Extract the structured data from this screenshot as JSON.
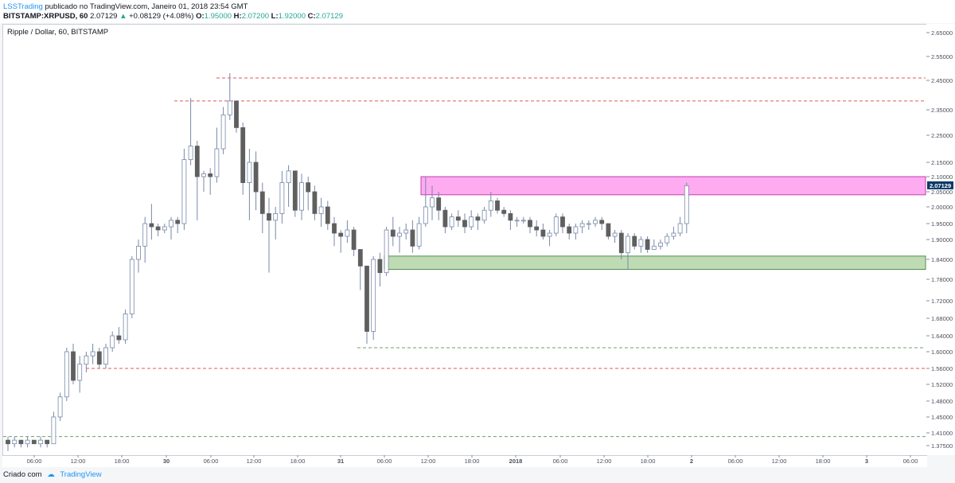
{
  "header": {
    "author": "LSSTrading",
    "published_text": "publicado no TradingView.com, Janeiro 01, 2018 23:54 GMT",
    "symbol": "BITSTAMP:XRPUSD, 60",
    "last": "2.07129",
    "change": "+0.08129 (+4.08%)",
    "o_label": "O:",
    "o": "1.95000",
    "h_label": "H:",
    "h": "2.07200",
    "l_label": "L:",
    "l": "1.92000",
    "c_label": "C:",
    "c": "2.07129"
  },
  "pane_title": "Ripple / Dollar, 60, BITSTAMP",
  "price_axis_labels": [
    "2.65000",
    "2.55000",
    "2.45000",
    "2.35000",
    "2.25000",
    "2.15000",
    "2.10000",
    "2.05000",
    "2.00000",
    "1.95000",
    "1.90000",
    "1.84000",
    "1.78000",
    "1.72000",
    "1.68000",
    "1.64000",
    "1.60000",
    "1.56000",
    "1.52000",
    "1.48000",
    "1.45000",
    "1.41000",
    "1.37500"
  ],
  "current_price_label": "2.07129",
  "time_axis_labels": [
    "06:00",
    "12:00",
    "18:00",
    "30",
    "06:00",
    "12:00",
    "18:00",
    "31",
    "06:00",
    "12:00",
    "18:00",
    "2018",
    "06:00",
    "12:00",
    "18:00",
    "2",
    "06:00",
    "12:00",
    "18:00",
    "3",
    "06:00"
  ],
  "footer": {
    "created": "Criado com",
    "logo_text": "TradingView"
  },
  "colors": {
    "up_candle": "#ffffff",
    "down_candle": "#5f5f5f",
    "wick": "#7788aa",
    "resistance_line": "#e05a5a",
    "support_line": "#6f9f6f",
    "resistance_zone": "#ff9cf0",
    "support_zone": "#a9cf9b",
    "price_tag": "#0c3a66"
  },
  "chart_data": {
    "type": "candlestick",
    "title": "Ripple / Dollar, 60, BITSTAMP",
    "xlabel": "",
    "ylabel": "",
    "interval": "60 min",
    "y_axis": "right",
    "ylim": [
      1.35,
      2.67
    ],
    "grid": false,
    "ohlc": [
      [
        1.39,
        1.4,
        1.36,
        1.38
      ],
      [
        1.38,
        1.4,
        1.37,
        1.39
      ],
      [
        1.39,
        1.39,
        1.37,
        1.38
      ],
      [
        1.38,
        1.4,
        1.37,
        1.39
      ],
      [
        1.39,
        1.39,
        1.38,
        1.38
      ],
      [
        1.38,
        1.4,
        1.37,
        1.39
      ],
      [
        1.39,
        1.39,
        1.37,
        1.38
      ],
      [
        1.38,
        1.46,
        1.38,
        1.45
      ],
      [
        1.45,
        1.5,
        1.44,
        1.49
      ],
      [
        1.49,
        1.61,
        1.48,
        1.6
      ],
      [
        1.6,
        1.62,
        1.52,
        1.53
      ],
      [
        1.53,
        1.59,
        1.5,
        1.57
      ],
      [
        1.57,
        1.6,
        1.55,
        1.59
      ],
      [
        1.59,
        1.62,
        1.57,
        1.6
      ],
      [
        1.6,
        1.61,
        1.56,
        1.57
      ],
      [
        1.57,
        1.62,
        1.56,
        1.61
      ],
      [
        1.61,
        1.65,
        1.6,
        1.64
      ],
      [
        1.64,
        1.66,
        1.62,
        1.63
      ],
      [
        1.63,
        1.7,
        1.62,
        1.69
      ],
      [
        1.69,
        1.85,
        1.68,
        1.84
      ],
      [
        1.84,
        1.9,
        1.8,
        1.88
      ],
      [
        1.88,
        1.97,
        1.83,
        1.95
      ],
      [
        1.95,
        2.01,
        1.9,
        1.94
      ],
      [
        1.94,
        1.95,
        1.91,
        1.93
      ],
      [
        1.93,
        1.95,
        1.92,
        1.94
      ],
      [
        1.94,
        1.97,
        1.9,
        1.96
      ],
      [
        1.96,
        1.97,
        1.92,
        1.95
      ],
      [
        1.95,
        2.2,
        1.93,
        2.16
      ],
      [
        2.16,
        2.39,
        2.14,
        2.21
      ],
      [
        2.21,
        2.23,
        1.96,
        2.1
      ],
      [
        2.1,
        2.12,
        2.05,
        2.11
      ],
      [
        2.11,
        2.13,
        2.04,
        2.1
      ],
      [
        2.1,
        2.28,
        2.08,
        2.2
      ],
      [
        2.2,
        2.36,
        2.18,
        2.33
      ],
      [
        2.33,
        2.48,
        2.31,
        2.38
      ],
      [
        2.38,
        2.38,
        2.26,
        2.28
      ],
      [
        2.28,
        2.3,
        2.04,
        2.08
      ],
      [
        2.08,
        2.2,
        1.96,
        2.15
      ],
      [
        2.15,
        2.19,
        1.99,
        2.05
      ],
      [
        2.05,
        2.08,
        1.92,
        1.98
      ],
      [
        1.98,
        2.03,
        1.8,
        1.96
      ],
      [
        1.96,
        2.0,
        1.9,
        1.98
      ],
      [
        1.98,
        2.12,
        1.95,
        2.08
      ],
      [
        2.08,
        2.14,
        2.0,
        2.12
      ],
      [
        2.12,
        2.12,
        1.97,
        1.99
      ],
      [
        1.99,
        2.11,
        1.96,
        2.08
      ],
      [
        2.08,
        2.1,
        1.99,
        2.05
      ],
      [
        2.05,
        2.07,
        1.96,
        1.98
      ],
      [
        1.98,
        2.03,
        1.94,
        2.0
      ],
      [
        2.0,
        2.02,
        1.93,
        1.95
      ],
      [
        1.95,
        1.97,
        1.88,
        1.92
      ],
      [
        1.92,
        1.93,
        1.86,
        1.91
      ],
      [
        1.91,
        1.96,
        1.89,
        1.93
      ],
      [
        1.93,
        1.94,
        1.85,
        1.87
      ],
      [
        1.87,
        1.87,
        1.75,
        1.82
      ],
      [
        1.82,
        1.82,
        1.62,
        1.65
      ],
      [
        1.65,
        1.85,
        1.63,
        1.84
      ],
      [
        1.84,
        1.86,
        1.76,
        1.8
      ],
      [
        1.8,
        1.94,
        1.79,
        1.93
      ],
      [
        1.93,
        1.97,
        1.88,
        1.91
      ],
      [
        1.91,
        1.94,
        1.86,
        1.92
      ],
      [
        1.92,
        1.95,
        1.9,
        1.93
      ],
      [
        1.93,
        1.96,
        1.86,
        1.88
      ],
      [
        1.88,
        1.97,
        1.87,
        1.95
      ],
      [
        1.95,
        2.1,
        1.94,
        2.0
      ],
      [
        2.0,
        2.07,
        1.96,
        2.03
      ],
      [
        2.03,
        2.05,
        1.96,
        1.99
      ],
      [
        1.99,
        2.0,
        1.92,
        1.94
      ],
      [
        1.94,
        1.98,
        1.93,
        1.97
      ],
      [
        1.97,
        1.99,
        1.94,
        1.96
      ],
      [
        1.96,
        1.98,
        1.92,
        1.94
      ],
      [
        1.94,
        1.99,
        1.93,
        1.97
      ],
      [
        1.97,
        1.98,
        1.93,
        1.96
      ],
      [
        1.96,
        2.0,
        1.95,
        1.99
      ],
      [
        1.99,
        2.05,
        1.97,
        2.02
      ],
      [
        2.02,
        2.03,
        1.98,
        1.99
      ],
      [
        1.99,
        2.0,
        1.97,
        1.98
      ],
      [
        1.98,
        1.99,
        1.93,
        1.96
      ],
      [
        1.96,
        1.97,
        1.94,
        1.96
      ],
      [
        1.96,
        1.97,
        1.95,
        1.96
      ],
      [
        1.96,
        1.97,
        1.92,
        1.94
      ],
      [
        1.94,
        1.96,
        1.91,
        1.93
      ],
      [
        1.93,
        1.95,
        1.9,
        1.91
      ],
      [
        1.91,
        1.93,
        1.88,
        1.92
      ],
      [
        1.92,
        1.98,
        1.91,
        1.97
      ],
      [
        1.97,
        1.98,
        1.92,
        1.94
      ],
      [
        1.94,
        1.95,
        1.9,
        1.92
      ],
      [
        1.92,
        1.95,
        1.9,
        1.94
      ],
      [
        1.94,
        1.96,
        1.92,
        1.95
      ],
      [
        1.95,
        1.96,
        1.93,
        1.95
      ],
      [
        1.95,
        1.97,
        1.94,
        1.96
      ],
      [
        1.96,
        1.97,
        1.93,
        1.95
      ],
      [
        1.95,
        1.95,
        1.9,
        1.91
      ],
      [
        1.91,
        1.93,
        1.89,
        1.92
      ],
      [
        1.92,
        1.93,
        1.84,
        1.86
      ],
      [
        1.86,
        1.92,
        1.81,
        1.91
      ],
      [
        1.91,
        1.92,
        1.87,
        1.88
      ],
      [
        1.88,
        1.91,
        1.86,
        1.9
      ],
      [
        1.9,
        1.91,
        1.86,
        1.87
      ],
      [
        1.87,
        1.9,
        1.87,
        1.88
      ],
      [
        1.88,
        1.9,
        1.87,
        1.89
      ],
      [
        1.89,
        1.92,
        1.88,
        1.91
      ],
      [
        1.91,
        1.94,
        1.9,
        1.92
      ],
      [
        1.92,
        1.97,
        1.91,
        1.95
      ],
      [
        1.95,
        2.08,
        1.92,
        2.07
      ]
    ],
    "horizontal_levels": [
      {
        "style": "dashed",
        "color": "red",
        "price": 2.46
      },
      {
        "style": "dashed",
        "color": "red",
        "price": 2.38
      },
      {
        "style": "dashed",
        "color": "red",
        "price": 1.56
      },
      {
        "style": "dashed",
        "color": "green",
        "price": 1.61
      },
      {
        "style": "dashed",
        "color": "green",
        "price": 1.4
      }
    ],
    "zones": [
      {
        "color": "pink",
        "from": 2.04,
        "to": 2.1
      },
      {
        "color": "green",
        "from": 1.81,
        "to": 1.85
      }
    ],
    "last_price": 2.07129
  }
}
